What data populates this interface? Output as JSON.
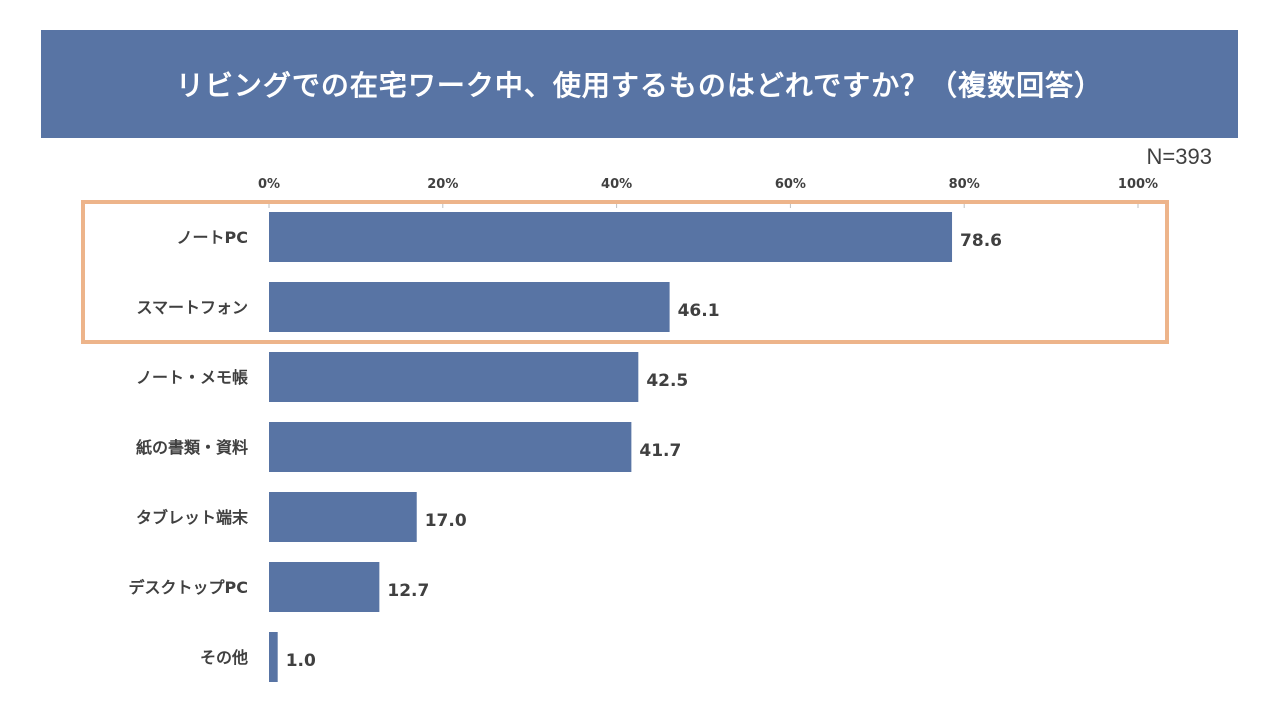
{
  "chart_data": {
    "type": "bar",
    "orientation": "horizontal",
    "title": "リビングでの在宅ワーク中、使用するものはどれですか？（複数回答）",
    "sample_size": "N=393",
    "categories": [
      "ノートPC",
      "スマートフォン",
      "ノート・メモ帳",
      "紙の書類・資料",
      "タブレット端末",
      "デスクトップPC",
      "その他"
    ],
    "values": [
      78.6,
      46.1,
      42.5,
      41.7,
      17.0,
      12.7,
      1.0
    ],
    "value_labels": [
      "78.6",
      "46.1",
      "42.5",
      "41.7",
      "17.0",
      "12.7",
      "1.0"
    ],
    "xlim": [
      0,
      100
    ],
    "xticks": [
      "0%",
      "20%",
      "40%",
      "60%",
      "80%",
      "100%"
    ],
    "xtick_values": [
      0,
      20,
      40,
      60,
      80,
      100
    ],
    "highlighted_categories": [
      "ノートPC",
      "スマートフォン"
    ],
    "bar_color": "#5874A4",
    "highlight_color": "#EDB48A"
  }
}
